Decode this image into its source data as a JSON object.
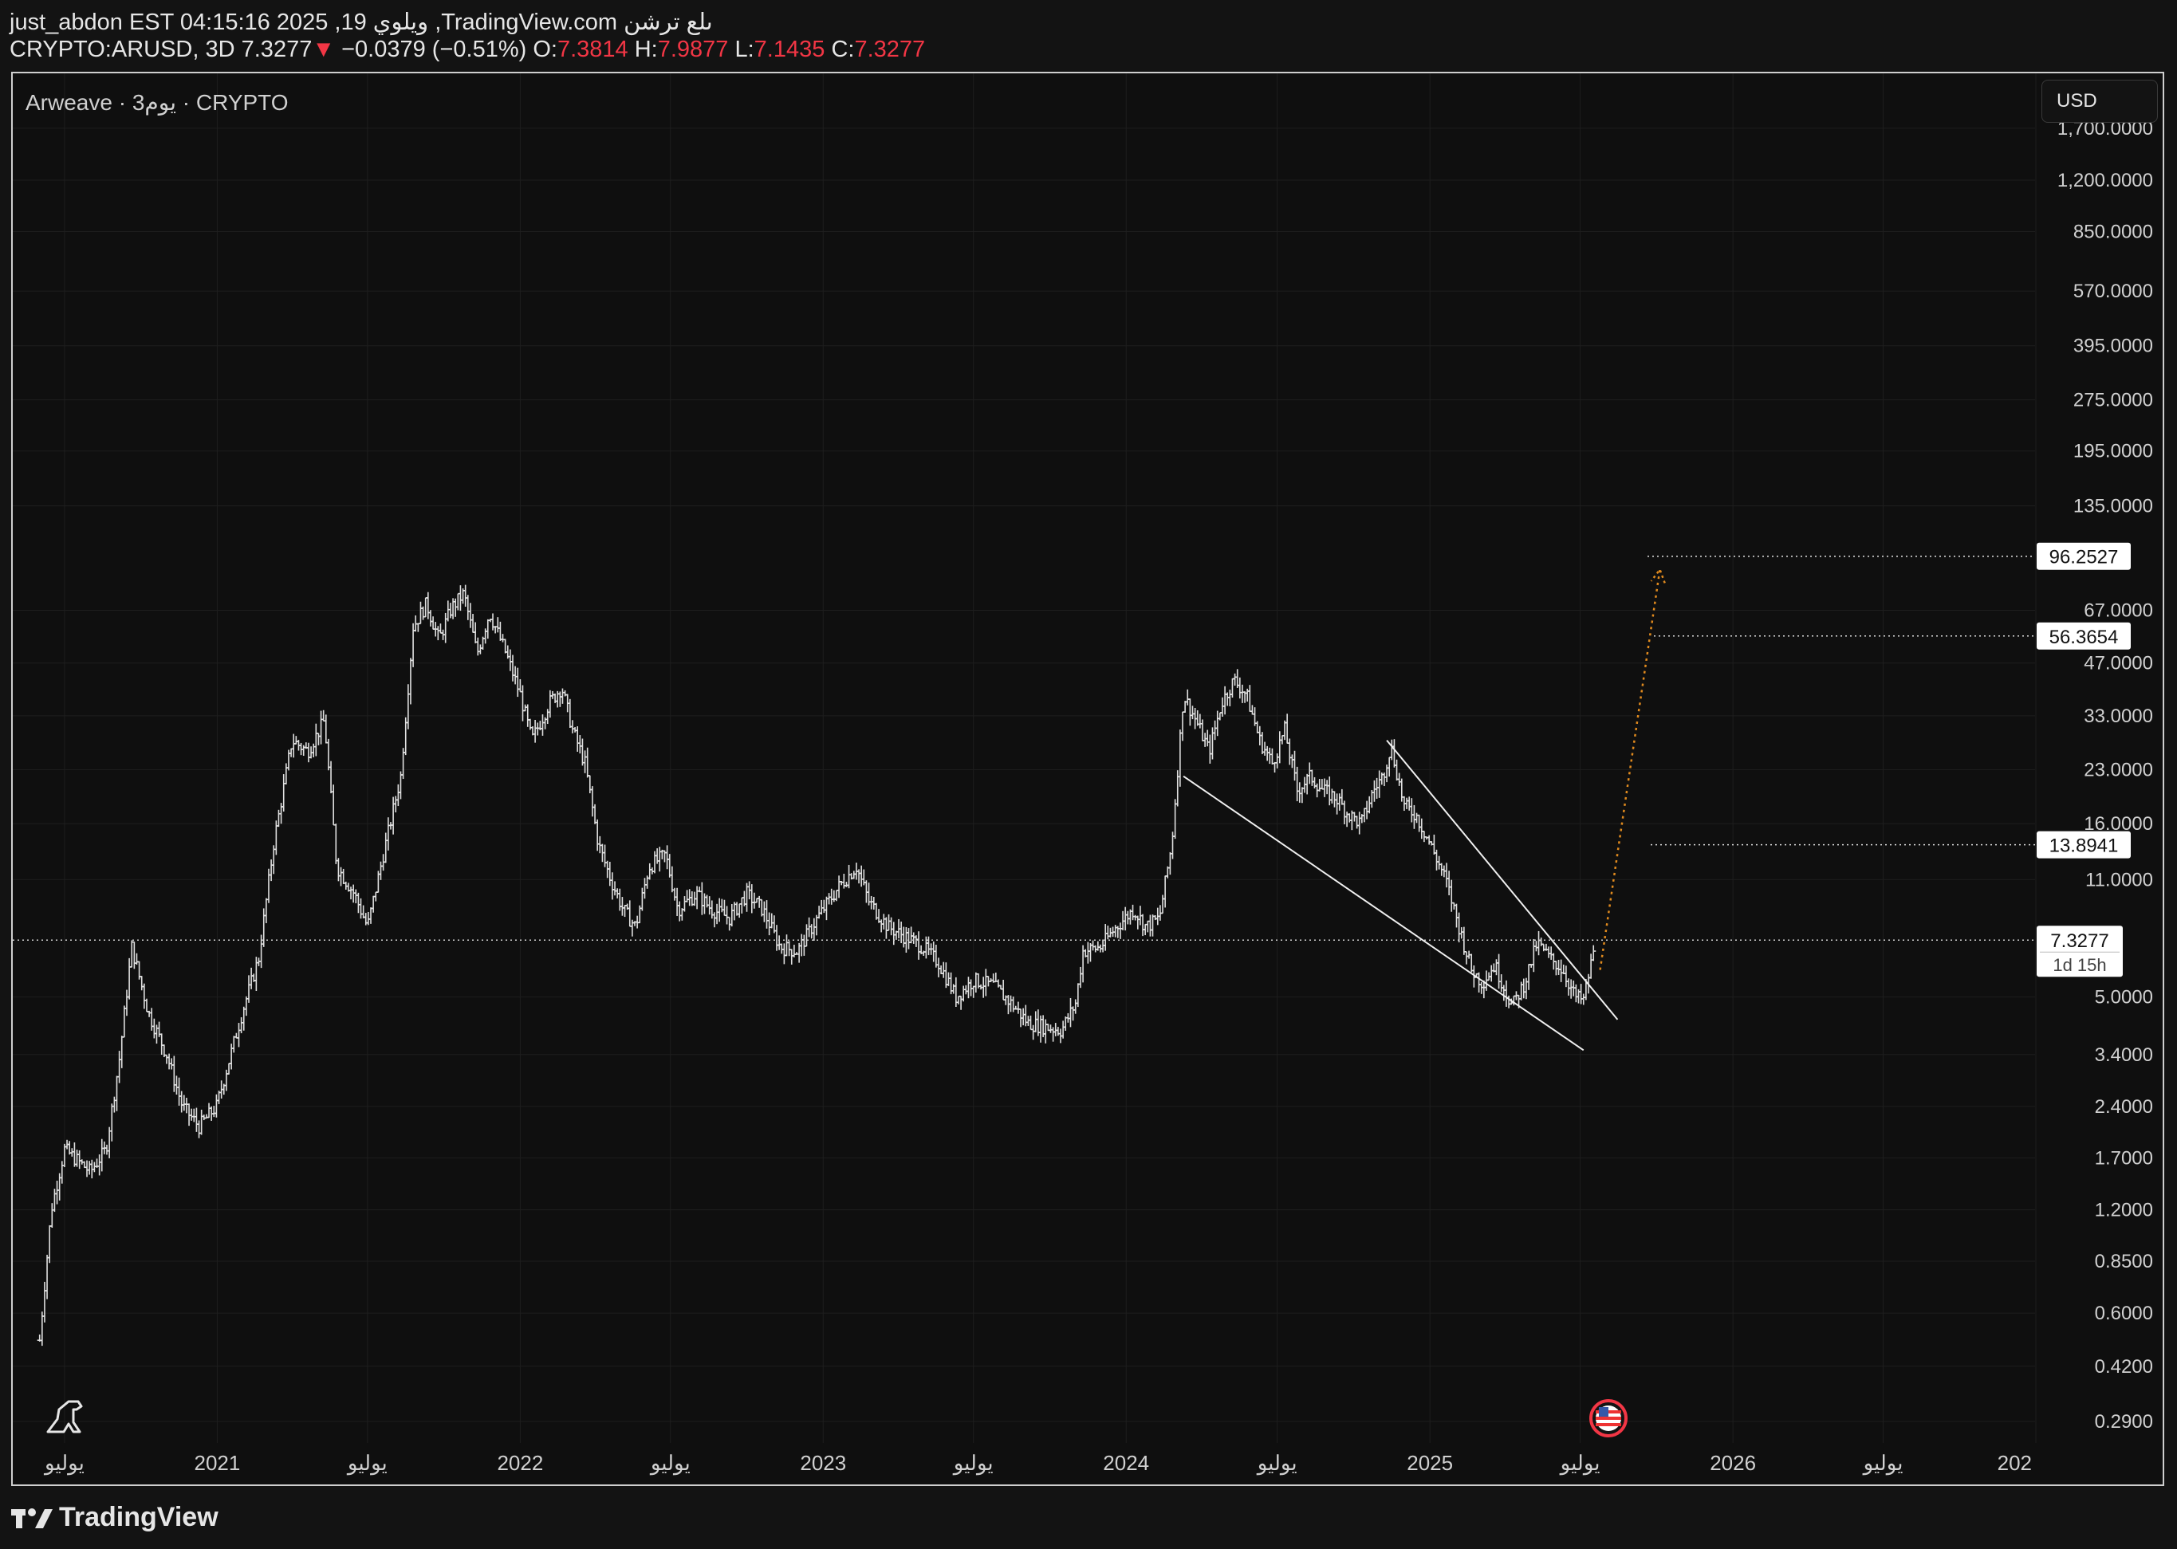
{
  "header": {
    "line1": "just_abdon EST 04:15:16 2025 ,19 ويلوي ,TradingView.com ىلع ترشن",
    "symbol": "CRYPTO:ARUSD, 3D",
    "last": "7.3277",
    "change": "−0.0379 (−0.51%)",
    "o_label": "O:",
    "o_value": "7.3814",
    "h_label": "H:",
    "h_value": "7.9877",
    "l_label": "L:",
    "l_value": "7.1435",
    "c_label": "C:",
    "c_value": "7.3277"
  },
  "chart_title": "Arweave · 3يوم · CRYPTO",
  "currency": "USD",
  "footer": {
    "brand": "TradingView"
  },
  "colors": {
    "background": "#0f0f0f",
    "candles": "#e0e0e0",
    "down": "#f23645",
    "projection": "#e08a1e",
    "grid": "#1e1e1e"
  },
  "chart_data": {
    "type": "bar",
    "symbol": "CRYPTO:ARUSD",
    "interval": "3D",
    "scale": "log",
    "ylim": [
      0.25,
      1800
    ],
    "y_ticks": [
      "1,700.0000",
      "1,200.0000",
      "850.0000",
      "570.0000",
      "395.0000",
      "275.0000",
      "195.0000",
      "135.0000",
      "67.0000",
      "47.0000",
      "33.0000",
      "23.0000",
      "16.0000",
      "11.0000",
      "5.0000",
      "3.4000",
      "2.4000",
      "1.7000",
      "1.2000",
      "0.8500",
      "0.6000",
      "0.4200",
      "0.2900"
    ],
    "x_ticks": [
      "يوليو",
      "2021",
      "يوليو",
      "2022",
      "يوليو",
      "2023",
      "يوليو",
      "2024",
      "يوليو",
      "2025",
      "يوليو",
      "2026",
      "يوليو",
      "202"
    ],
    "price_path": [
      [
        "2020-06-01",
        0.5
      ],
      [
        "2020-06-15",
        1.2
      ],
      [
        "2020-07-01",
        1.8
      ],
      [
        "2020-08-01",
        1.55
      ],
      [
        "2020-08-20",
        1.8
      ],
      [
        "2020-09-05",
        3.3
      ],
      [
        "2020-09-20",
        7.0
      ],
      [
        "2020-10-10",
        4.5
      ],
      [
        "2020-11-01",
        3.4
      ],
      [
        "2020-11-20",
        2.4
      ],
      [
        "2020-12-10",
        2.1
      ],
      [
        "2020-12-31",
        2.4
      ],
      [
        "2021-02-01",
        4.6
      ],
      [
        "2021-02-20",
        6.5
      ],
      [
        "2021-03-10",
        14.0
      ],
      [
        "2021-04-01",
        28.0
      ],
      [
        "2021-04-20",
        26.0
      ],
      [
        "2021-05-10",
        32.0
      ],
      [
        "2021-05-25",
        12.0
      ],
      [
        "2021-06-15",
        10.0
      ],
      [
        "2021-07-01",
        8.0
      ],
      [
        "2021-07-20",
        13.0
      ],
      [
        "2021-08-10",
        22.0
      ],
      [
        "2021-08-25",
        60.0
      ],
      [
        "2021-09-10",
        70.0
      ],
      [
        "2021-09-25",
        55.0
      ],
      [
        "2021-10-10",
        68.0
      ],
      [
        "2021-10-25",
        75.0
      ],
      [
        "2021-11-10",
        50.0
      ],
      [
        "2021-11-25",
        66.0
      ],
      [
        "2021-12-15",
        50.0
      ],
      [
        "2022-01-01",
        38.0
      ],
      [
        "2022-01-15",
        28.0
      ],
      [
        "2022-02-05",
        36.0
      ],
      [
        "2022-02-20",
        40.0
      ],
      [
        "2022-03-05",
        30.0
      ],
      [
        "2022-03-20",
        24.0
      ],
      [
        "2022-04-05",
        14.0
      ],
      [
        "2022-04-20",
        11.0
      ],
      [
        "2022-05-05",
        9.0
      ],
      [
        "2022-05-20",
        8.0
      ],
      [
        "2022-06-05",
        12.0
      ],
      [
        "2022-06-25",
        13.0
      ],
      [
        "2022-07-10",
        9.0
      ],
      [
        "2022-08-01",
        10.0
      ],
      [
        "2022-08-20",
        9.0
      ],
      [
        "2022-09-10",
        8.5
      ],
      [
        "2022-10-01",
        10.0
      ],
      [
        "2022-10-20",
        9.0
      ],
      [
        "2022-11-10",
        7.0
      ],
      [
        "2022-12-01",
        6.8
      ],
      [
        "2022-12-25",
        8.5
      ],
      [
        "2023-01-20",
        10.5
      ],
      [
        "2023-02-10",
        12.0
      ],
      [
        "2023-02-25",
        9.5
      ],
      [
        "2023-03-20",
        8.0
      ],
      [
        "2023-04-10",
        7.5
      ],
      [
        "2023-05-01",
        7.0
      ],
      [
        "2023-05-20",
        6.3
      ],
      [
        "2023-06-10",
        5.0
      ],
      [
        "2023-07-01",
        5.6
      ],
      [
        "2023-07-25",
        5.4
      ],
      [
        "2023-08-15",
        4.8
      ],
      [
        "2023-09-05",
        4.2
      ],
      [
        "2023-09-25",
        4.1
      ],
      [
        "2023-10-15",
        4.0
      ],
      [
        "2023-11-01",
        4.8
      ],
      [
        "2023-11-10",
        6.8
      ],
      [
        "2023-12-01",
        7.0
      ],
      [
        "2023-12-20",
        8.0
      ],
      [
        "2024-01-10",
        9.0
      ],
      [
        "2024-01-25",
        8.0
      ],
      [
        "2024-02-10",
        8.5
      ],
      [
        "2024-02-25",
        14.0
      ],
      [
        "2024-03-10",
        38.0
      ],
      [
        "2024-03-25",
        32.0
      ],
      [
        "2024-04-10",
        26.0
      ],
      [
        "2024-04-25",
        36.0
      ],
      [
        "2024-05-10",
        42.0
      ],
      [
        "2024-05-25",
        38.0
      ],
      [
        "2024-06-10",
        28.0
      ],
      [
        "2024-06-25",
        24.0
      ],
      [
        "2024-07-10",
        30.0
      ],
      [
        "2024-07-25",
        20.0
      ],
      [
        "2024-08-10",
        22.0
      ],
      [
        "2024-08-25",
        20.0
      ],
      [
        "2024-09-10",
        19.0
      ],
      [
        "2024-09-25",
        17.0
      ],
      [
        "2024-10-10",
        16.0
      ],
      [
        "2024-10-25",
        20.0
      ],
      [
        "2024-11-05",
        22.0
      ],
      [
        "2024-11-15",
        27.0
      ],
      [
        "2024-12-01",
        18.0
      ],
      [
        "2024-12-15",
        17.0
      ],
      [
        "2025-01-01",
        14.0
      ],
      [
        "2025-01-20",
        11.0
      ],
      [
        "2025-02-05",
        8.0
      ],
      [
        "2025-02-20",
        6.0
      ],
      [
        "2025-03-05",
        5.5
      ],
      [
        "2025-03-20",
        6.2
      ],
      [
        "2025-04-10",
        4.7
      ],
      [
        "2025-04-25",
        5.5
      ],
      [
        "2025-05-10",
        7.2
      ],
      [
        "2025-05-25",
        6.5
      ],
      [
        "2025-06-10",
        6.0
      ],
      [
        "2025-06-25",
        5.0
      ],
      [
        "2025-07-05",
        4.9
      ],
      [
        "2025-07-15",
        6.4
      ],
      [
        "2025-07-19",
        7.33
      ]
    ],
    "wedge_lines": [
      {
        "name": "upper",
        "from": [
          "2024-11-10",
          28.0
        ],
        "to": [
          "2025-08-15",
          4.3
        ]
      },
      {
        "name": "lower",
        "from": [
          "2024-03-10",
          22.0
        ],
        "to": [
          "2025-07-05",
          3.5
        ]
      }
    ],
    "projection": {
      "from": [
        "2025-07-25",
        6.0
      ],
      "to": [
        "2025-10-05",
        88.0
      ]
    },
    "levels": [
      {
        "value": 96.2527,
        "label": "96.2527"
      },
      {
        "value": 56.3654,
        "label": "56.3654"
      },
      {
        "value": 13.8941,
        "label": "13.8941"
      }
    ],
    "last_price": {
      "value": 7.3277,
      "label": "7.3277",
      "countdown": "1d 15h"
    }
  }
}
